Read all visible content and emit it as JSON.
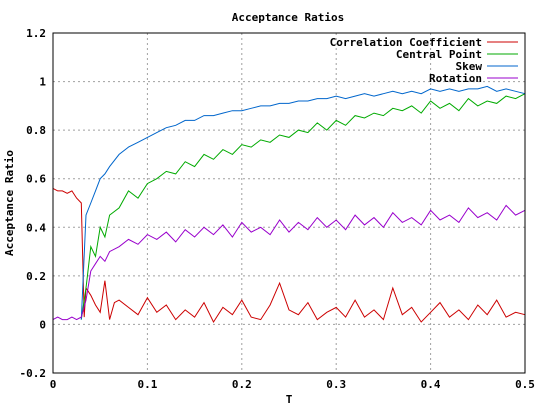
{
  "chart_data": {
    "type": "line",
    "title": "Acceptance Ratios",
    "xlabel": "T",
    "ylabel": "Acceptance Ratio",
    "xlim": [
      0,
      0.5
    ],
    "ylim": [
      -0.2,
      1.2
    ],
    "xticks": [
      0,
      0.1,
      0.2,
      0.3,
      0.4,
      0.5
    ],
    "xtick_labels": [
      "0",
      "0.1",
      "0.2",
      "0.3",
      "0.4",
      "0.5"
    ],
    "yticks": [
      -0.2,
      0,
      0.2,
      0.4,
      0.6,
      0.8,
      1,
      1.2
    ],
    "ytick_labels": [
      "-0.2",
      "0",
      "0.2",
      "0.4",
      "0.6",
      "0.8",
      "1",
      "1.2"
    ],
    "grid": true,
    "legend_position": "top-right",
    "series": [
      {
        "name": "Correlation Coefficient",
        "color": "#cc0000",
        "x": [
          0,
          0.005,
          0.01,
          0.015,
          0.02,
          0.025,
          0.03,
          0.033,
          0.035,
          0.04,
          0.045,
          0.05,
          0.055,
          0.06,
          0.065,
          0.07,
          0.08,
          0.09,
          0.1,
          0.11,
          0.12,
          0.13,
          0.14,
          0.15,
          0.16,
          0.17,
          0.18,
          0.19,
          0.2,
          0.21,
          0.22,
          0.23,
          0.24,
          0.25,
          0.26,
          0.27,
          0.28,
          0.29,
          0.3,
          0.31,
          0.32,
          0.33,
          0.34,
          0.35,
          0.36,
          0.37,
          0.38,
          0.39,
          0.4,
          0.41,
          0.42,
          0.43,
          0.44,
          0.45,
          0.46,
          0.47,
          0.48,
          0.49,
          0.5
        ],
        "y": [
          0.56,
          0.55,
          0.55,
          0.54,
          0.55,
          0.52,
          0.5,
          0.03,
          0.15,
          0.12,
          0.08,
          0.05,
          0.18,
          0.02,
          0.09,
          0.1,
          0.07,
          0.04,
          0.11,
          0.05,
          0.08,
          0.02,
          0.06,
          0.03,
          0.09,
          0.01,
          0.07,
          0.04,
          0.1,
          0.03,
          0.02,
          0.08,
          0.17,
          0.06,
          0.04,
          0.09,
          0.02,
          0.05,
          0.07,
          0.03,
          0.1,
          0.03,
          0.06,
          0.02,
          0.15,
          0.04,
          0.07,
          0.01,
          0.05,
          0.09,
          0.03,
          0.06,
          0.02,
          0.08,
          0.04,
          0.1,
          0.03,
          0.05,
          0.04
        ]
      },
      {
        "name": "Central Point",
        "color": "#00aa00",
        "x": [
          0.03,
          0.035,
          0.04,
          0.045,
          0.05,
          0.055,
          0.06,
          0.07,
          0.08,
          0.09,
          0.1,
          0.11,
          0.12,
          0.13,
          0.14,
          0.15,
          0.16,
          0.17,
          0.18,
          0.19,
          0.2,
          0.21,
          0.22,
          0.23,
          0.24,
          0.25,
          0.26,
          0.27,
          0.28,
          0.29,
          0.3,
          0.31,
          0.32,
          0.33,
          0.34,
          0.35,
          0.36,
          0.37,
          0.38,
          0.39,
          0.4,
          0.41,
          0.42,
          0.43,
          0.44,
          0.45,
          0.46,
          0.47,
          0.48,
          0.49,
          0.5
        ],
        "y": [
          0.02,
          0.15,
          0.32,
          0.28,
          0.4,
          0.36,
          0.45,
          0.48,
          0.55,
          0.52,
          0.58,
          0.6,
          0.63,
          0.62,
          0.67,
          0.65,
          0.7,
          0.68,
          0.72,
          0.7,
          0.74,
          0.73,
          0.76,
          0.75,
          0.78,
          0.77,
          0.8,
          0.79,
          0.83,
          0.8,
          0.84,
          0.82,
          0.86,
          0.85,
          0.87,
          0.86,
          0.89,
          0.88,
          0.9,
          0.87,
          0.92,
          0.89,
          0.91,
          0.88,
          0.93,
          0.9,
          0.92,
          0.91,
          0.94,
          0.93,
          0.95
        ]
      },
      {
        "name": "Skew",
        "color": "#0066cc",
        "x": [
          0.03,
          0.035,
          0.04,
          0.045,
          0.05,
          0.055,
          0.06,
          0.07,
          0.08,
          0.09,
          0.1,
          0.11,
          0.12,
          0.13,
          0.14,
          0.15,
          0.16,
          0.17,
          0.18,
          0.19,
          0.2,
          0.21,
          0.22,
          0.23,
          0.24,
          0.25,
          0.26,
          0.27,
          0.28,
          0.29,
          0.3,
          0.31,
          0.32,
          0.33,
          0.34,
          0.35,
          0.36,
          0.37,
          0.38,
          0.39,
          0.4,
          0.41,
          0.42,
          0.43,
          0.44,
          0.45,
          0.46,
          0.47,
          0.48,
          0.49,
          0.5
        ],
        "y": [
          0.02,
          0.45,
          0.5,
          0.55,
          0.6,
          0.62,
          0.65,
          0.7,
          0.73,
          0.75,
          0.77,
          0.79,
          0.81,
          0.82,
          0.84,
          0.84,
          0.86,
          0.86,
          0.87,
          0.88,
          0.88,
          0.89,
          0.9,
          0.9,
          0.91,
          0.91,
          0.92,
          0.92,
          0.93,
          0.93,
          0.94,
          0.93,
          0.94,
          0.95,
          0.94,
          0.95,
          0.96,
          0.95,
          0.96,
          0.95,
          0.97,
          0.96,
          0.97,
          0.96,
          0.97,
          0.97,
          0.98,
          0.96,
          0.97,
          0.96,
          0.95
        ]
      },
      {
        "name": "Rotation",
        "color": "#9900cc",
        "x": [
          0,
          0.005,
          0.01,
          0.015,
          0.02,
          0.025,
          0.03,
          0.035,
          0.04,
          0.045,
          0.05,
          0.055,
          0.06,
          0.07,
          0.08,
          0.09,
          0.1,
          0.11,
          0.12,
          0.13,
          0.14,
          0.15,
          0.16,
          0.17,
          0.18,
          0.19,
          0.2,
          0.21,
          0.22,
          0.23,
          0.24,
          0.25,
          0.26,
          0.27,
          0.28,
          0.29,
          0.3,
          0.31,
          0.32,
          0.33,
          0.34,
          0.35,
          0.36,
          0.37,
          0.38,
          0.39,
          0.4,
          0.41,
          0.42,
          0.43,
          0.44,
          0.45,
          0.46,
          0.47,
          0.48,
          0.49,
          0.5
        ],
        "y": [
          0.02,
          0.03,
          0.02,
          0.02,
          0.03,
          0.02,
          0.03,
          0.1,
          0.22,
          0.25,
          0.28,
          0.26,
          0.3,
          0.32,
          0.35,
          0.33,
          0.37,
          0.35,
          0.38,
          0.34,
          0.39,
          0.36,
          0.4,
          0.37,
          0.41,
          0.36,
          0.42,
          0.38,
          0.4,
          0.37,
          0.43,
          0.38,
          0.42,
          0.39,
          0.44,
          0.4,
          0.43,
          0.39,
          0.45,
          0.41,
          0.44,
          0.4,
          0.46,
          0.42,
          0.44,
          0.41,
          0.47,
          0.43,
          0.45,
          0.42,
          0.48,
          0.44,
          0.46,
          0.43,
          0.49,
          0.45,
          0.47
        ]
      }
    ]
  }
}
